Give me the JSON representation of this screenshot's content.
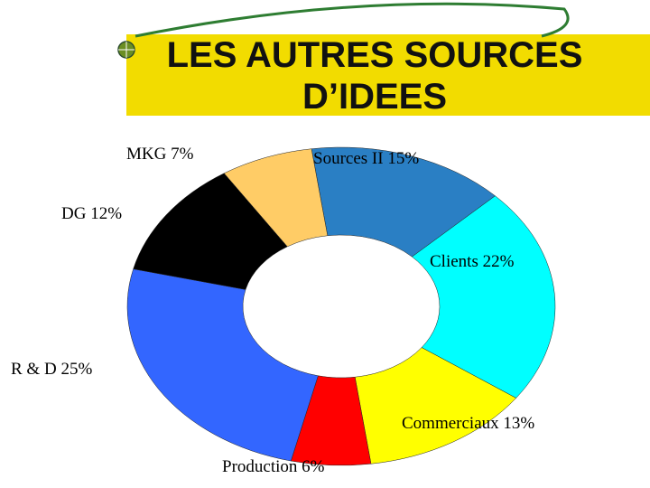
{
  "chart_data": {
    "type": "donut",
    "title": "LES AUTRES SOURCES D’IDEES",
    "categories": [
      "Sources II",
      "Clients",
      "Commerciaux",
      "Production",
      "R & D",
      "DG",
      "MKG"
    ],
    "values": [
      15,
      22,
      13,
      6,
      25,
      12,
      7
    ],
    "value_labels": [
      "15%",
      "22%",
      "13%",
      "6%",
      "25%",
      "12%",
      "7%"
    ],
    "colors": [
      "#2a7fc4",
      "#00ffff",
      "#ffff00",
      "#ff0000",
      "#3366ff",
      "#000000",
      "#ffcc66"
    ]
  }
}
